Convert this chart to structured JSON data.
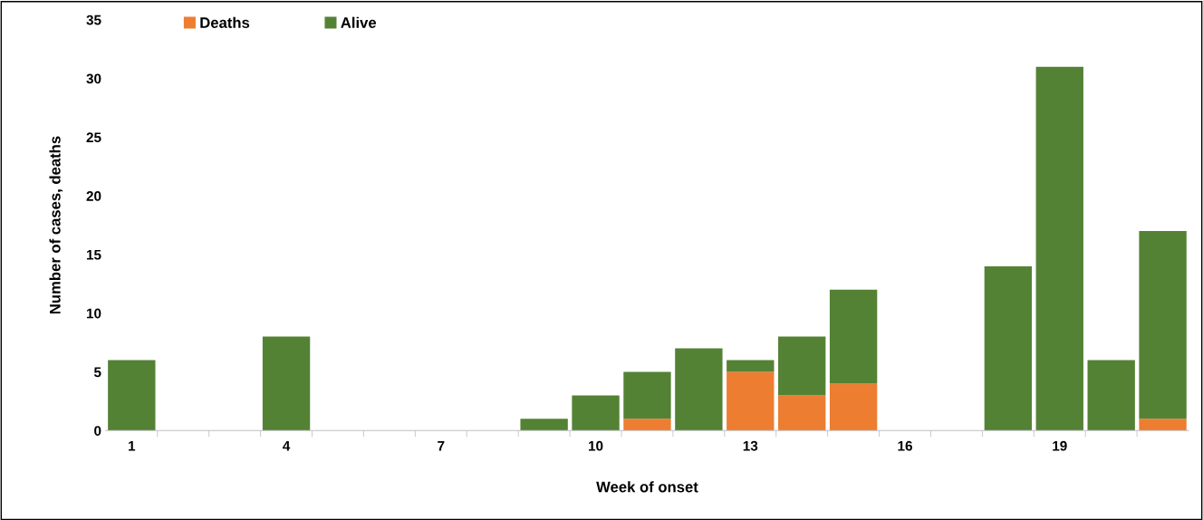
{
  "chart_data": {
    "type": "bar",
    "stacked": true,
    "xlabel": "Week of onset",
    "ylabel": "Number of cases, deaths",
    "categories": [
      "1",
      null,
      null,
      "4",
      null,
      null,
      "7",
      null,
      null,
      "10",
      null,
      null,
      "13",
      null,
      null,
      "16",
      null,
      null,
      "19",
      null,
      null
    ],
    "series": [
      {
        "name": "Deaths",
        "color": "#ed7d31",
        "values": [
          null,
          null,
          null,
          null,
          null,
          null,
          null,
          null,
          null,
          null,
          1,
          null,
          5,
          3,
          4,
          null,
          null,
          null,
          null,
          null,
          1
        ]
      },
      {
        "name": "Alive",
        "color": "#548235",
        "values": [
          6,
          null,
          null,
          8,
          null,
          null,
          null,
          null,
          1,
          3,
          4,
          7,
          1,
          5,
          8,
          null,
          null,
          14,
          31,
          6,
          16
        ]
      }
    ],
    "ylim": [
      0,
      35
    ],
    "yticks": [
      0,
      5,
      10,
      15,
      20,
      25,
      30,
      35
    ],
    "grid": false,
    "legend": "top left"
  }
}
